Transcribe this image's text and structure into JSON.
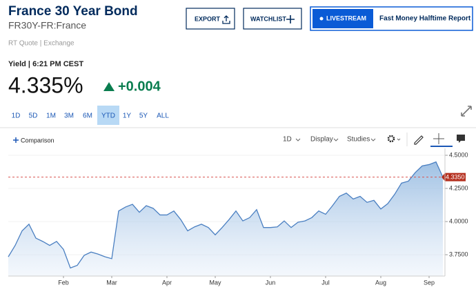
{
  "header": {
    "title": "France 30 Year Bond",
    "symbol": "FR30Y-FR:France",
    "quote_note": "RT Quote | Exchange"
  },
  "buttons": {
    "export": "EXPORT",
    "watchlist": "WATCHLIST",
    "livestream": "LIVESTREAM",
    "show": "Fast Money Halftime Report"
  },
  "quote": {
    "yield_label": "Yield | 6:21 PM CEST",
    "price": "4.335%",
    "change": "+0.004"
  },
  "ranges": [
    "1D",
    "5D",
    "1M",
    "3M",
    "6M",
    "YTD",
    "1Y",
    "5Y",
    "ALL"
  ],
  "active_range": 5,
  "toolbar": {
    "comparison": "Comparison",
    "interval": "1D",
    "display": "Display",
    "studies": "Studies"
  },
  "chart_data": {
    "type": "area",
    "color": "#4a7fc1",
    "categories": [
      null,
      null,
      null,
      null,
      null,
      null,
      null,
      null,
      "Feb",
      null,
      null,
      null,
      null,
      null,
      null,
      "Mar",
      null,
      null,
      null,
      null,
      null,
      null,
      null,
      "Apr",
      null,
      null,
      null,
      null,
      null,
      null,
      "May",
      null,
      null,
      null,
      null,
      null,
      null,
      null,
      "Jun",
      null,
      null,
      null,
      null,
      null,
      null,
      null,
      "Jul",
      null,
      null,
      null,
      null,
      null,
      null,
      null,
      "Aug",
      null,
      null,
      null,
      null,
      null,
      null,
      "Sep",
      null,
      null
    ],
    "values": [
      3.734,
      3.82,
      3.93,
      3.98,
      3.875,
      3.85,
      3.82,
      3.85,
      3.79,
      3.65,
      3.67,
      3.745,
      3.77,
      3.755,
      3.735,
      3.72,
      4.08,
      4.11,
      4.13,
      4.07,
      4.12,
      4.1,
      4.05,
      4.05,
      4.08,
      4.015,
      3.93,
      3.96,
      3.98,
      3.955,
      3.9,
      3.955,
      4.015,
      4.08,
      4.005,
      4.03,
      4.09,
      3.955,
      3.955,
      3.96,
      4.005,
      3.955,
      3.995,
      4.005,
      4.03,
      4.08,
      4.055,
      4.12,
      4.19,
      4.215,
      4.17,
      4.19,
      4.145,
      4.16,
      4.095,
      4.135,
      4.205,
      4.29,
      4.305,
      4.37,
      4.42,
      4.43,
      4.45,
      4.335
    ],
    "ylim": [
      3.589,
      4.552
    ],
    "yticks": [
      {
        "value": 3.75,
        "label": "3.7500"
      },
      {
        "value": 4,
        "label": "4.0000"
      },
      {
        "value": 4.25,
        "label": "4.2500"
      },
      {
        "value": 4.5,
        "label": "4.5000"
      }
    ],
    "reference_line": {
      "value": 4.335,
      "label": "4.3350",
      "color": "#d9534f"
    }
  }
}
